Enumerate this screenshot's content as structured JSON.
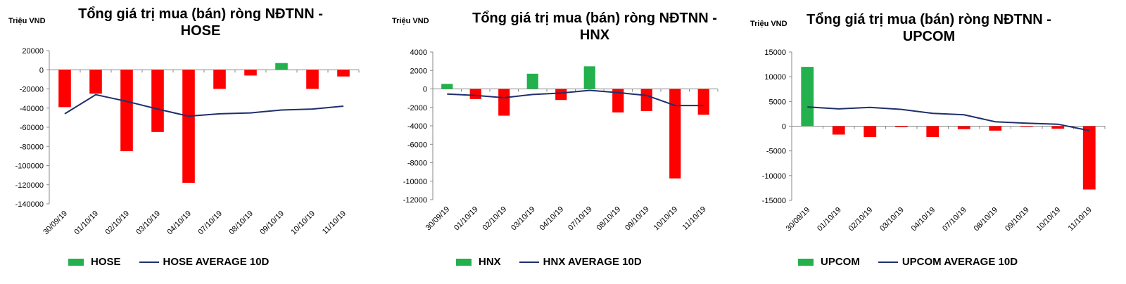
{
  "charts": [
    {
      "unit": "Triệu VND",
      "title_line1": "Tổng giá trị mua (bán) ròng NĐTNN -",
      "title_line2": "HOSE",
      "legend_bar": "HOSE",
      "legend_line": "HOSE AVERAGE 10D"
    },
    {
      "unit": "Triệu VND",
      "title_line1": "Tổng giá trị mua (bán) ròng NĐTNN -",
      "title_line2": "HNX",
      "legend_bar": "HNX",
      "legend_line": "HNX AVERAGE 10D"
    },
    {
      "unit": "Triệu VND",
      "title_line1": "Tổng giá trị mua (bán) ròng NĐTNN -",
      "title_line2": "UPCOM",
      "legend_bar": "UPCOM",
      "legend_line": "UPCOM AVERAGE 10D"
    }
  ],
  "colors": {
    "positive": "#22b14c",
    "negative": "#ff0000",
    "average": "#1f2f6b",
    "axis": "#888888"
  },
  "chart_data": [
    {
      "type": "bar",
      "title": "Tổng giá trị mua (bán) ròng NĐTNN - HOSE",
      "ylabel": "Triệu VND",
      "categories": [
        "30/09/19",
        "01/10/19",
        "02/10/19",
        "03/10/19",
        "04/10/19",
        "07/10/19",
        "08/10/19",
        "09/10/19",
        "10/10/19",
        "11/10/19"
      ],
      "series": [
        {
          "name": "HOSE",
          "type": "bar",
          "values": [
            -39000,
            -25000,
            -85000,
            -65000,
            -118000,
            -20000,
            -6000,
            7000,
            -20000,
            -7000
          ]
        },
        {
          "name": "HOSE AVERAGE 10D",
          "type": "line",
          "values": [
            -46000,
            -26000,
            -33000,
            -41000,
            -48500,
            -46000,
            -45000,
            -42000,
            -41000,
            -38000
          ]
        }
      ],
      "ylim": [
        -140000,
        20000
      ],
      "yticks": [
        20000,
        0,
        -20000,
        -40000,
        -60000,
        -80000,
        -100000,
        -120000,
        -140000
      ],
      "legend": "bottom"
    },
    {
      "type": "bar",
      "title": "Tổng giá trị mua (bán) ròng NĐTNN - HNX",
      "ylabel": "Triệu VND",
      "categories": [
        "30/09/19",
        "01/10/19",
        "02/10/19",
        "03/10/19",
        "04/10/19",
        "07/10/19",
        "08/10/19",
        "09/10/19",
        "10/10/19",
        "11/10/19"
      ],
      "series": [
        {
          "name": "HNX",
          "type": "bar",
          "values": [
            550,
            -1100,
            -2900,
            1650,
            -1200,
            2450,
            -2550,
            -2400,
            -9700,
            -2800
          ]
        },
        {
          "name": "HNX AVERAGE 10D",
          "type": "line",
          "values": [
            -550,
            -700,
            -950,
            -600,
            -450,
            -150,
            -400,
            -700,
            -1800,
            -1800
          ]
        }
      ],
      "ylim": [
        -12000,
        4000
      ],
      "yticks": [
        4000,
        2000,
        0,
        -2000,
        -4000,
        -6000,
        -8000,
        -10000,
        -12000
      ],
      "legend": "bottom"
    },
    {
      "type": "bar",
      "title": "Tổng giá trị mua (bán) ròng NĐTNN - UPCOM",
      "ylabel": "Triệu VND",
      "categories": [
        "30/09/19",
        "01/10/19",
        "02/10/19",
        "03/10/19",
        "04/10/19",
        "07/10/19",
        "08/10/19",
        "09/10/19",
        "10/10/19",
        "11/10/19"
      ],
      "series": [
        {
          "name": "UPCOM",
          "type": "bar",
          "values": [
            12000,
            -1700,
            -2200,
            -200,
            -2200,
            -600,
            -900,
            -100,
            -500,
            -12800
          ]
        },
        {
          "name": "UPCOM AVERAGE 10D",
          "type": "line",
          "values": [
            3900,
            3500,
            3800,
            3400,
            2600,
            2300,
            900,
            600,
            400,
            -900
          ]
        }
      ],
      "ylim": [
        -15000,
        15000
      ],
      "yticks": [
        15000,
        10000,
        5000,
        0,
        -5000,
        -10000,
        -15000
      ],
      "legend": "bottom"
    }
  ]
}
